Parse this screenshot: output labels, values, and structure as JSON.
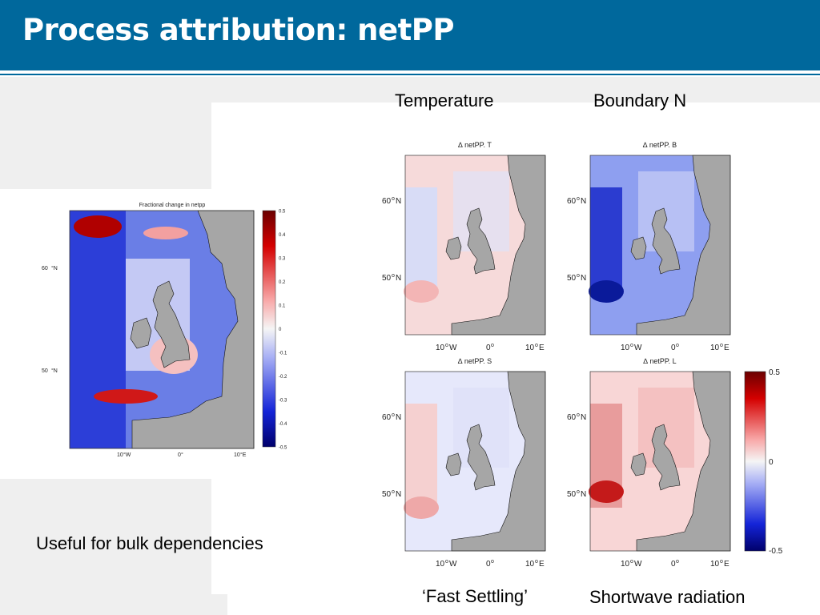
{
  "slide": {
    "title": "Process attribution: netPP",
    "column_headers": {
      "left": "Temperature",
      "right": "Boundary N"
    },
    "footer_labels": {
      "left": "‘Fast Settling’",
      "right": "Shortwave radiation"
    },
    "caption": "Useful for bulk dependencies",
    "colors": {
      "header": "#00689c",
      "land": "#a6a6a6",
      "neg": "#1f2fd0",
      "pos": "#d42020"
    }
  },
  "big_map": {
    "title": "Fractional change in netpp",
    "lat_labels": [
      "60",
      "50"
    ],
    "lon_labels": [
      "10",
      "0",
      "10"
    ],
    "lon_suffix": [
      "W",
      "",
      "E"
    ],
    "colorbar_ticks": [
      "0.5",
      "0.4",
      "0.3",
      "0.2",
      "0.1",
      "0",
      "-0.1",
      "-0.2",
      "-0.3",
      "-0.4",
      "-0.5"
    ]
  },
  "panels": [
    {
      "title": "∆ netPP. T",
      "lat_labels": [
        "60",
        "50"
      ],
      "lon_labels": [
        "10",
        "0",
        "10"
      ],
      "lon_suffix": [
        "W",
        "",
        "E"
      ]
    },
    {
      "title": "∆ netPP. B",
      "lat_labels": [
        "60",
        "50"
      ],
      "lon_labels": [
        "10",
        "0",
        "10"
      ],
      "lon_suffix": [
        "W",
        "",
        "E"
      ]
    },
    {
      "title": "∆ netPP. S",
      "lat_labels": [
        "60",
        "50"
      ],
      "lon_labels": [
        "10",
        "0",
        "10"
      ],
      "lon_suffix": [
        "W",
        "",
        "E"
      ]
    },
    {
      "title": "∆ netPP. L",
      "lat_labels": [
        "60",
        "50"
      ],
      "lon_labels": [
        "10",
        "0",
        "10"
      ],
      "lon_suffix": [
        "W",
        "",
        "E"
      ]
    }
  ],
  "small_colorbar": {
    "ticks": [
      "0.5",
      "0",
      "-0.5"
    ]
  }
}
